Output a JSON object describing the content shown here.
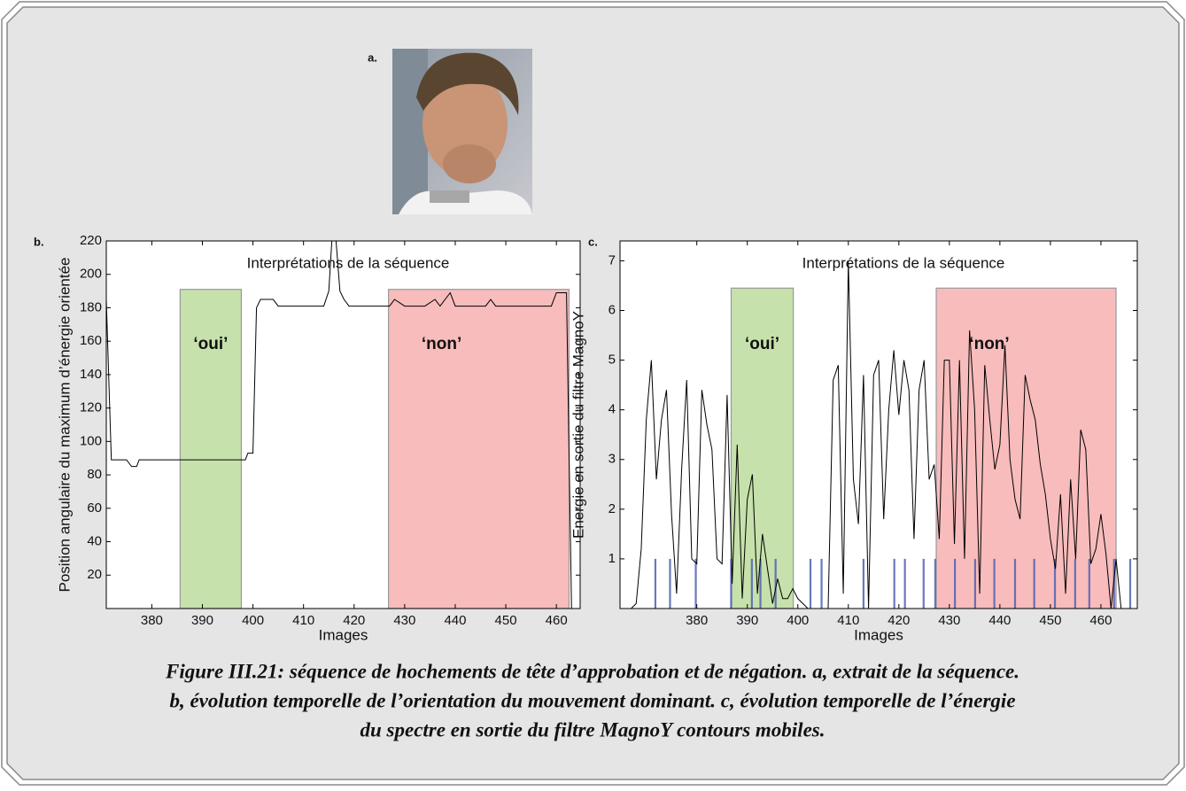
{
  "panel_label": "a.",
  "chart_data": [
    {
      "type": "line",
      "panel_label": "b.",
      "xlabel": "Images",
      "ylabel": "Position angulaire du maximum d’énergie orientée",
      "annotation": "Interprétations de la séquence",
      "xlim": [
        371,
        464.7
      ],
      "ylim": [
        0,
        220
      ],
      "xticks": [
        380,
        390,
        400,
        410,
        420,
        430,
        440,
        450,
        460
      ],
      "yticks": [
        20,
        40,
        60,
        80,
        100,
        120,
        140,
        160,
        180,
        200,
        220
      ],
      "spans": [
        {
          "name": "‘oui’",
          "start": 385.6,
          "end": 397.7,
          "top": 191,
          "color": "#c6e1ab"
        },
        {
          "name": "‘non’",
          "start": 426.8,
          "end": 462.5,
          "top": 191,
          "color": "#f8bcbc"
        }
      ],
      "series": [
        {
          "color": "#000000",
          "x": [
            371,
            372,
            375,
            376,
            377,
            377.5,
            398.5,
            399,
            400,
            400.7,
            401.5,
            404,
            405,
            407,
            409,
            414,
            415,
            415.7,
            416.3,
            417.2,
            418,
            419,
            427,
            428,
            430,
            433,
            434,
            436,
            437,
            439,
            440,
            445,
            446,
            447,
            448,
            458,
            459,
            460,
            462,
            463
          ],
          "values": [
            185,
            89,
            89,
            85,
            85,
            89,
            89,
            93,
            93,
            180,
            185,
            185,
            181,
            181,
            181,
            181,
            190,
            225,
            225,
            190,
            185,
            181,
            181,
            185,
            181,
            181,
            181,
            185,
            181,
            189,
            181,
            181,
            181,
            185,
            181,
            181,
            181,
            189,
            189,
            0
          ]
        }
      ]
    },
    {
      "type": "line",
      "panel_label": "c.",
      "xlabel": "Images",
      "ylabel": "Energie en sortie du filtre MagnoY",
      "annotation": "Interprétations de la séquence",
      "xlim": [
        364.8,
        467.2
      ],
      "ylim": [
        0,
        7.4
      ],
      "xticks": [
        380,
        390,
        400,
        410,
        420,
        430,
        440,
        450,
        460
      ],
      "yticks": [
        1,
        2,
        3,
        4,
        5,
        6,
        7
      ],
      "spans": [
        {
          "name": "‘oui’",
          "start": 386.8,
          "end": 399.1,
          "top": 6.45,
          "color": "#c6e1ab"
        },
        {
          "name": "‘non’",
          "start": 427.4,
          "end": 463,
          "top": 6.45,
          "color": "#f8bcbc"
        }
      ],
      "markers": {
        "color": "#4f62b0",
        "x": [
          371.8,
          374.7,
          379.8,
          386.8,
          390.9,
          392.6,
          395.6,
          402.5,
          404.7,
          413.0,
          419.1,
          421.2,
          424.9,
          427.2,
          431.1,
          435.1,
          438.9,
          443.0,
          446.8,
          450.9,
          454.9,
          457.7,
          462.6,
          465.8
        ],
        "values": [
          1,
          1,
          1,
          1,
          1,
          1,
          1,
          1,
          1,
          1,
          1,
          1,
          1,
          1,
          1,
          1,
          1,
          1,
          1,
          1,
          1,
          1,
          1,
          1
        ]
      },
      "series": [
        {
          "color": "#000000",
          "x": [
            367,
            368,
            369,
            370,
            371,
            372,
            373,
            374,
            375,
            376,
            377,
            378,
            379,
            380,
            381,
            382,
            383,
            384,
            385,
            386,
            387,
            388,
            389,
            390,
            391,
            392,
            393,
            394,
            395,
            396,
            397,
            398,
            399,
            400,
            401,
            402,
            403,
            404,
            405,
            406,
            407,
            408,
            409,
            410,
            411,
            412,
            413,
            414,
            415,
            416,
            417,
            418,
            419,
            420,
            421,
            422,
            423,
            424,
            425,
            426,
            427,
            428,
            429,
            430,
            431,
            432,
            433,
            434,
            435,
            436,
            437,
            438,
            439,
            440,
            441,
            442,
            443,
            444,
            445,
            446,
            447,
            448,
            449,
            450,
            451,
            452,
            453,
            454,
            455,
            456,
            457,
            458,
            459,
            460,
            461,
            462,
            463,
            464,
            465,
            466
          ],
          "values": [
            0.0,
            0.1,
            1.2,
            3.8,
            5.0,
            2.6,
            3.8,
            4.4,
            1.9,
            0.3,
            2.8,
            4.6,
            1.0,
            0.9,
            4.4,
            3.7,
            3.2,
            1.0,
            0.9,
            4.3,
            0.5,
            3.3,
            0.2,
            2.2,
            2.7,
            0.3,
            1.5,
            0.8,
            0.1,
            0.6,
            0.2,
            0.2,
            0.4,
            0.2,
            0.1,
            0.0,
            0.0,
            0.0,
            0.0,
            0.0,
            4.6,
            4.9,
            0.3,
            7.0,
            2.6,
            1.7,
            4.7,
            0.0,
            4.7,
            5.0,
            1.8,
            4.0,
            5.2,
            3.9,
            5.0,
            4.4,
            1.4,
            4.4,
            5.0,
            2.6,
            2.9,
            1.4,
            5.0,
            5.0,
            1.3,
            5.0,
            1.0,
            5.6,
            4.0,
            0.3,
            4.9,
            3.8,
            2.8,
            3.3,
            5.3,
            3.0,
            2.2,
            1.8,
            4.7,
            4.2,
            3.8,
            2.9,
            2.3,
            1.4,
            0.8,
            2.3,
            0.3,
            2.6,
            1.0,
            3.6,
            3.2,
            0.9,
            1.2,
            1.9,
            1.1,
            0.0,
            1.0,
            0.0,
            0.0,
            0.0
          ]
        }
      ]
    }
  ],
  "caption": [
    "Figure III.21: séquence de hochements de tête d’approbation et de négation. a, extrait de la séquence.",
    "b, évolution temporelle de l’orientation du mouvement dominant. c, évolution temporelle de l’énergie",
    "du spectre en sortie du filtre MagnoY contours mobiles."
  ]
}
